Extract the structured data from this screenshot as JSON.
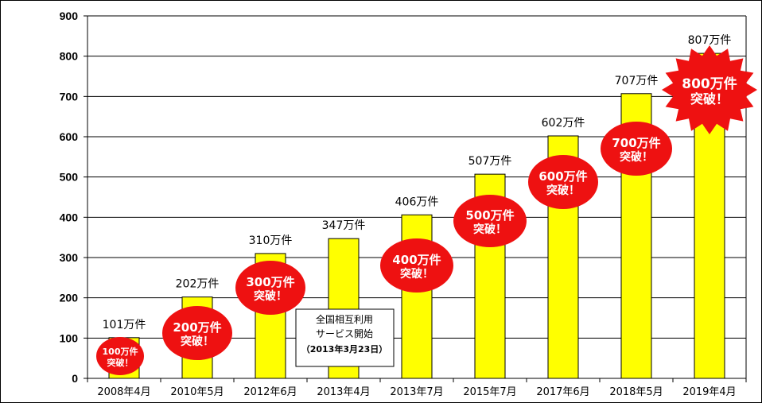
{
  "chart_data": {
    "type": "bar",
    "categories": [
      "2008年4月",
      "2010年5月",
      "2012年6月",
      "2013年4月",
      "2013年7月",
      "2015年7月",
      "2017年6月",
      "2018年5月",
      "2019年4月"
    ],
    "values": [
      101,
      202,
      310,
      347,
      406,
      507,
      602,
      707,
      807
    ],
    "value_labels": [
      "101万件",
      "202万件",
      "310万件",
      "347万件",
      "406万件",
      "507万件",
      "602万件",
      "707万件",
      "807万件"
    ],
    "ylim": [
      0,
      900
    ],
    "yticks": [
      0,
      100,
      200,
      300,
      400,
      500,
      600,
      700,
      800,
      900
    ],
    "grid": true,
    "bar_color": "#ffff00",
    "milestones": [
      {
        "category": "2008年4月",
        "line1": "100万件",
        "line2": "突破！",
        "shape": "ellipse"
      },
      {
        "category": "2010年5月",
        "line1": "200万件",
        "line2": "突破！",
        "shape": "ellipse"
      },
      {
        "category": "2012年6月",
        "line1": "300万件",
        "line2": "突破！",
        "shape": "ellipse"
      },
      {
        "category": "2013年7月",
        "line1": "400万件",
        "line2": "突破！",
        "shape": "ellipse"
      },
      {
        "category": "2015年7月",
        "line1": "500万件",
        "line2": "突破！",
        "shape": "ellipse"
      },
      {
        "category": "2017年6月",
        "line1": "600万件",
        "line2": "突破！",
        "shape": "ellipse"
      },
      {
        "category": "2018年5月",
        "line1": "700万件",
        "line2": "突破！",
        "shape": "ellipse"
      },
      {
        "category": "2019年4月",
        "line1": "800万件",
        "line2": "突破！",
        "shape": "starburst"
      }
    ],
    "milestone_color": "#ee1111",
    "annotation": {
      "line1": "全国相互利用",
      "line2": "サービス開始",
      "line3": "（2013年3月23日）"
    }
  }
}
